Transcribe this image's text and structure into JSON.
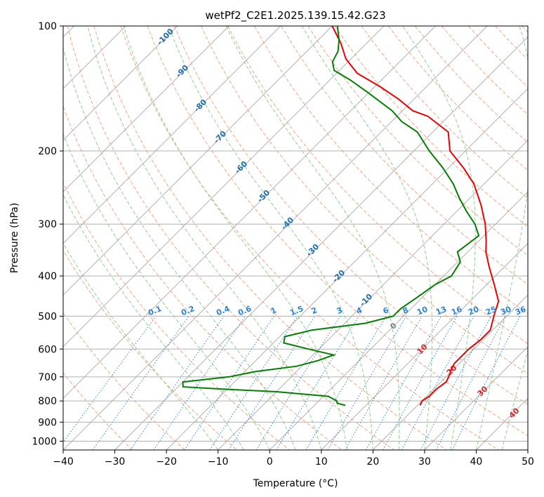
{
  "chart_data": {
    "type": "line",
    "title": "wetPf2_C2E1.2025.139.15.42.G23",
    "xlabel": "Temperature (°C)",
    "ylabel": "Pressure (hPa)",
    "xlim": [
      -40,
      50
    ],
    "ylim": [
      1050,
      100
    ],
    "y_scale": "log",
    "x_ticks": [
      -40,
      -30,
      -20,
      -10,
      0,
      10,
      20,
      30,
      40,
      50
    ],
    "y_ticks": [
      100,
      200,
      300,
      400,
      500,
      600,
      700,
      800,
      900,
      1000
    ],
    "grid": true,
    "series": [
      {
        "role": "temperature",
        "color": "#ee0000",
        "points": [
          {
            "p": 820,
            "t": 20.5
          },
          {
            "p": 800,
            "t": 20
          },
          {
            "p": 780,
            "t": 20.5
          },
          {
            "p": 750,
            "t": 20.5
          },
          {
            "p": 720,
            "t": 21
          },
          {
            "p": 700,
            "t": 20.5
          },
          {
            "p": 670,
            "t": 19.5
          },
          {
            "p": 650,
            "t": 19
          },
          {
            "p": 630,
            "t": 19
          },
          {
            "p": 600,
            "t": 19
          },
          {
            "p": 570,
            "t": 19.5
          },
          {
            "p": 540,
            "t": 19.5
          },
          {
            "p": 500,
            "t": 17.5
          },
          {
            "p": 460,
            "t": 15.5
          },
          {
            "p": 420,
            "t": 11.5
          },
          {
            "p": 380,
            "t": 7
          },
          {
            "p": 350,
            "t": 3.5
          },
          {
            "p": 330,
            "t": 1.5
          },
          {
            "p": 300,
            "t": -2
          },
          {
            "p": 270,
            "t": -6.5
          },
          {
            "p": 240,
            "t": -12
          },
          {
            "p": 220,
            "t": -17
          },
          {
            "p": 200,
            "t": -23
          },
          {
            "p": 180,
            "t": -27
          },
          {
            "p": 165,
            "t": -34
          },
          {
            "p": 160,
            "t": -38
          },
          {
            "p": 150,
            "t": -43
          },
          {
            "p": 140,
            "t": -49
          },
          {
            "p": 130,
            "t": -56
          },
          {
            "p": 120,
            "t": -61
          },
          {
            "p": 110,
            "t": -65
          },
          {
            "p": 100,
            "t": -70
          }
        ]
      },
      {
        "role": "dewpoint",
        "color": "#008000",
        "points": [
          {
            "p": 820,
            "t": 6
          },
          {
            "p": 810,
            "t": 4
          },
          {
            "p": 800,
            "t": 3.5
          },
          {
            "p": 780,
            "t": 1
          },
          {
            "p": 760,
            "t": -10
          },
          {
            "p": 750,
            "t": -20
          },
          {
            "p": 740,
            "t": -29
          },
          {
            "p": 720,
            "t": -30
          },
          {
            "p": 700,
            "t": -22
          },
          {
            "p": 680,
            "t": -18
          },
          {
            "p": 660,
            "t": -11
          },
          {
            "p": 640,
            "t": -8
          },
          {
            "p": 620,
            "t": -6
          },
          {
            "p": 600,
            "t": -12
          },
          {
            "p": 580,
            "t": -18
          },
          {
            "p": 560,
            "t": -19
          },
          {
            "p": 540,
            "t": -15
          },
          {
            "p": 520,
            "t": -6
          },
          {
            "p": 500,
            "t": -2
          },
          {
            "p": 480,
            "t": -2
          },
          {
            "p": 450,
            "t": -1
          },
          {
            "p": 420,
            "t": 0
          },
          {
            "p": 400,
            "t": 1.5
          },
          {
            "p": 370,
            "t": 0.5
          },
          {
            "p": 350,
            "t": -2
          },
          {
            "p": 320,
            "t": -1
          },
          {
            "p": 300,
            "t": -4
          },
          {
            "p": 280,
            "t": -8
          },
          {
            "p": 260,
            "t": -12
          },
          {
            "p": 240,
            "t": -16
          },
          {
            "p": 220,
            "t": -21
          },
          {
            "p": 200,
            "t": -27
          },
          {
            "p": 180,
            "t": -33
          },
          {
            "p": 170,
            "t": -38
          },
          {
            "p": 160,
            "t": -42
          },
          {
            "p": 145,
            "t": -50
          },
          {
            "p": 135,
            "t": -56
          },
          {
            "p": 128,
            "t": -61
          },
          {
            "p": 122,
            "t": -63
          },
          {
            "p": 115,
            "t": -64
          },
          {
            "p": 108,
            "t": -66
          },
          {
            "p": 100,
            "t": -69
          }
        ]
      }
    ],
    "dry_adiabat_labels": [
      "-100",
      "-90",
      "-80",
      "-70",
      "-60",
      "-50",
      "-40",
      "-30",
      "-20",
      "-10"
    ],
    "mixing_ratio_labels": [
      "0.1",
      "0.2",
      "0.4",
      "0.6",
      "1",
      "1.5",
      "2",
      "3",
      "4",
      "6",
      "8",
      "10",
      "13",
      "16",
      "20",
      "25",
      "30",
      "36"
    ],
    "moist_adiabat_labels": [
      "0",
      "10",
      "20",
      "30",
      "40"
    ],
    "colors": {
      "temperature": "#ee0000",
      "dewpoint": "#008000",
      "isotherm": "#a8a8a8",
      "isobar": "#b0b0b0",
      "dry_adiabat": "#f4a582",
      "moist_adiabat": "#8fcf8f",
      "mixing_ratio": "#2a84d8",
      "dry_adiabat_label": "#1f6fb0",
      "moist_adiabat_label": "#d62728",
      "zero_label": "#808080"
    }
  }
}
